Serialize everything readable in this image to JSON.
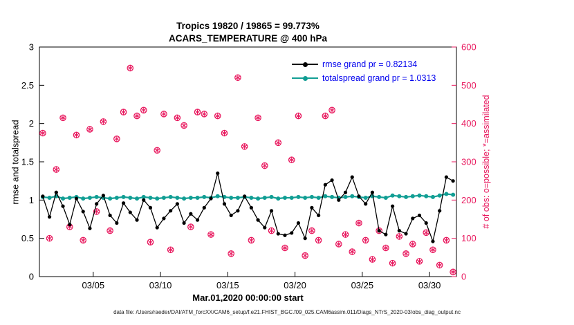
{
  "figure": {
    "title1": "Tropics 19820 / 19865 = 99.773%",
    "title2": "ACARS_TEMPERATURE @ 400 hPa",
    "xlabel": "Mar.01,2020 00:00:00 start",
    "ylabel_left": "rmse and totalspread",
    "ylabel_right": "# of obs: o=possible; *=assimilated",
    "caption": "data file: /Users/raeder/DAI/ATM_forcXX/CAM6_setup/f.e21.FHIST_BGC.f09_025.CAM6assim.011/Diags_NTrS_2020-03/obs_diag_output.nc",
    "legend": {
      "text_color": "#0000ee",
      "items": [
        {
          "label": "rmse grand pr = 0.82134"
        },
        {
          "label": "totalspread grand pr = 1.0313"
        }
      ]
    }
  },
  "chart_data": {
    "type": "line",
    "title": "Tropics 19820 / 19865 = 99.773% — ACARS_TEMPERATURE @ 400 hPa",
    "xlabel": "Mar.01,2020 00:00:00 start",
    "ylabel_left": "rmse and totalspread",
    "ylabel_right": "# of obs: o=possible; *=assimilated",
    "ylim_left": [
      0,
      3
    ],
    "yticks_left": [
      0,
      0.5,
      1,
      1.5,
      2,
      2.5,
      3
    ],
    "ylim_right": [
      0,
      600
    ],
    "yticks_right": [
      0,
      100,
      200,
      300,
      400,
      500,
      600
    ],
    "right_axis_color": "#e8175d",
    "xlim_days": [
      0,
      31
    ],
    "xticks": [
      {
        "day": 4,
        "label": "03/05"
      },
      {
        "day": 9,
        "label": "03/10"
      },
      {
        "day": 14,
        "label": "03/15"
      },
      {
        "day": 19,
        "label": "03/20"
      },
      {
        "day": 24,
        "label": "03/25"
      },
      {
        "day": 29,
        "label": "03/30"
      }
    ],
    "x_days": [
      0.25,
      0.75,
      1.25,
      1.75,
      2.25,
      2.75,
      3.25,
      3.75,
      4.25,
      4.75,
      5.25,
      5.75,
      6.25,
      6.75,
      7.25,
      7.75,
      8.25,
      8.75,
      9.25,
      9.75,
      10.25,
      10.75,
      11.25,
      11.75,
      12.25,
      12.75,
      13.25,
      13.75,
      14.25,
      14.75,
      15.25,
      15.75,
      16.25,
      16.75,
      17.25,
      17.75,
      18.25,
      18.75,
      19.25,
      19.75,
      20.25,
      20.75,
      21.25,
      21.75,
      22.25,
      22.75,
      23.25,
      23.75,
      24.25,
      24.75,
      25.25,
      25.75,
      26.25,
      26.75,
      27.25,
      27.75,
      28.25,
      28.75,
      29.25,
      29.75,
      30.25,
      30.75
    ],
    "series": [
      {
        "name": "rmse grand pr = 0.82134",
        "color": "#000000",
        "values": [
          1.05,
          0.78,
          1.1,
          0.92,
          0.68,
          1.02,
          0.85,
          0.63,
          0.95,
          1.06,
          0.8,
          0.7,
          0.96,
          0.84,
          0.74,
          1.0,
          0.9,
          0.64,
          0.76,
          0.86,
          0.95,
          0.7,
          0.82,
          0.74,
          0.9,
          1.02,
          1.35,
          0.95,
          0.8,
          0.86,
          1.05,
          0.9,
          0.74,
          0.64,
          0.86,
          0.56,
          0.54,
          0.57,
          0.7,
          0.5,
          0.9,
          0.8,
          1.2,
          1.26,
          1.0,
          1.1,
          1.3,
          1.05,
          0.95,
          1.1,
          0.6,
          0.55,
          0.92,
          0.6,
          0.56,
          0.76,
          0.8,
          0.7,
          0.46,
          0.86,
          1.3,
          1.25
        ]
      },
      {
        "name": "totalspread grand pr = 1.0313",
        "color": "#119e94",
        "values": [
          1.04,
          1.03,
          1.05,
          1.02,
          1.03,
          1.04,
          1.02,
          1.03,
          1.04,
          1.03,
          1.02,
          1.03,
          1.04,
          1.03,
          1.02,
          1.04,
          1.03,
          1.02,
          1.03,
          1.04,
          1.03,
          1.02,
          1.03,
          1.03,
          1.04,
          1.03,
          1.05,
          1.04,
          1.03,
          1.03,
          1.04,
          1.03,
          1.02,
          1.03,
          1.04,
          1.02,
          1.03,
          1.03,
          1.04,
          1.03,
          1.04,
          1.03,
          1.05,
          1.04,
          1.03,
          1.04,
          1.05,
          1.04,
          1.03,
          1.05,
          1.04,
          1.03,
          1.06,
          1.05,
          1.04,
          1.05,
          1.06,
          1.05,
          1.04,
          1.06,
          1.08,
          1.07
        ]
      }
    ],
    "obs": {
      "color": "#e8175d",
      "possible": [
        375,
        100,
        280,
        415,
        130,
        370,
        95,
        385,
        170,
        405,
        120,
        360,
        430,
        545,
        420,
        435,
        90,
        330,
        425,
        70,
        415,
        395,
        130,
        430,
        425,
        110,
        420,
        375,
        60,
        520,
        340,
        95,
        415,
        290,
        120,
        350,
        75,
        305,
        420,
        55,
        120,
        95,
        420,
        435,
        85,
        110,
        65,
        140,
        95,
        45,
        120,
        75,
        35,
        105,
        60,
        85,
        40,
        115,
        70,
        30,
        95,
        12
      ],
      "assimilated": [
        375,
        100,
        280,
        415,
        130,
        370,
        95,
        385,
        170,
        405,
        120,
        360,
        430,
        545,
        420,
        435,
        90,
        330,
        425,
        70,
        415,
        395,
        130,
        430,
        425,
        110,
        420,
        375,
        60,
        520,
        340,
        95,
        415,
        290,
        120,
        350,
        75,
        305,
        420,
        55,
        120,
        95,
        420,
        435,
        85,
        110,
        65,
        140,
        95,
        45,
        120,
        75,
        35,
        105,
        60,
        85,
        40,
        115,
        70,
        30,
        95,
        12
      ]
    }
  }
}
